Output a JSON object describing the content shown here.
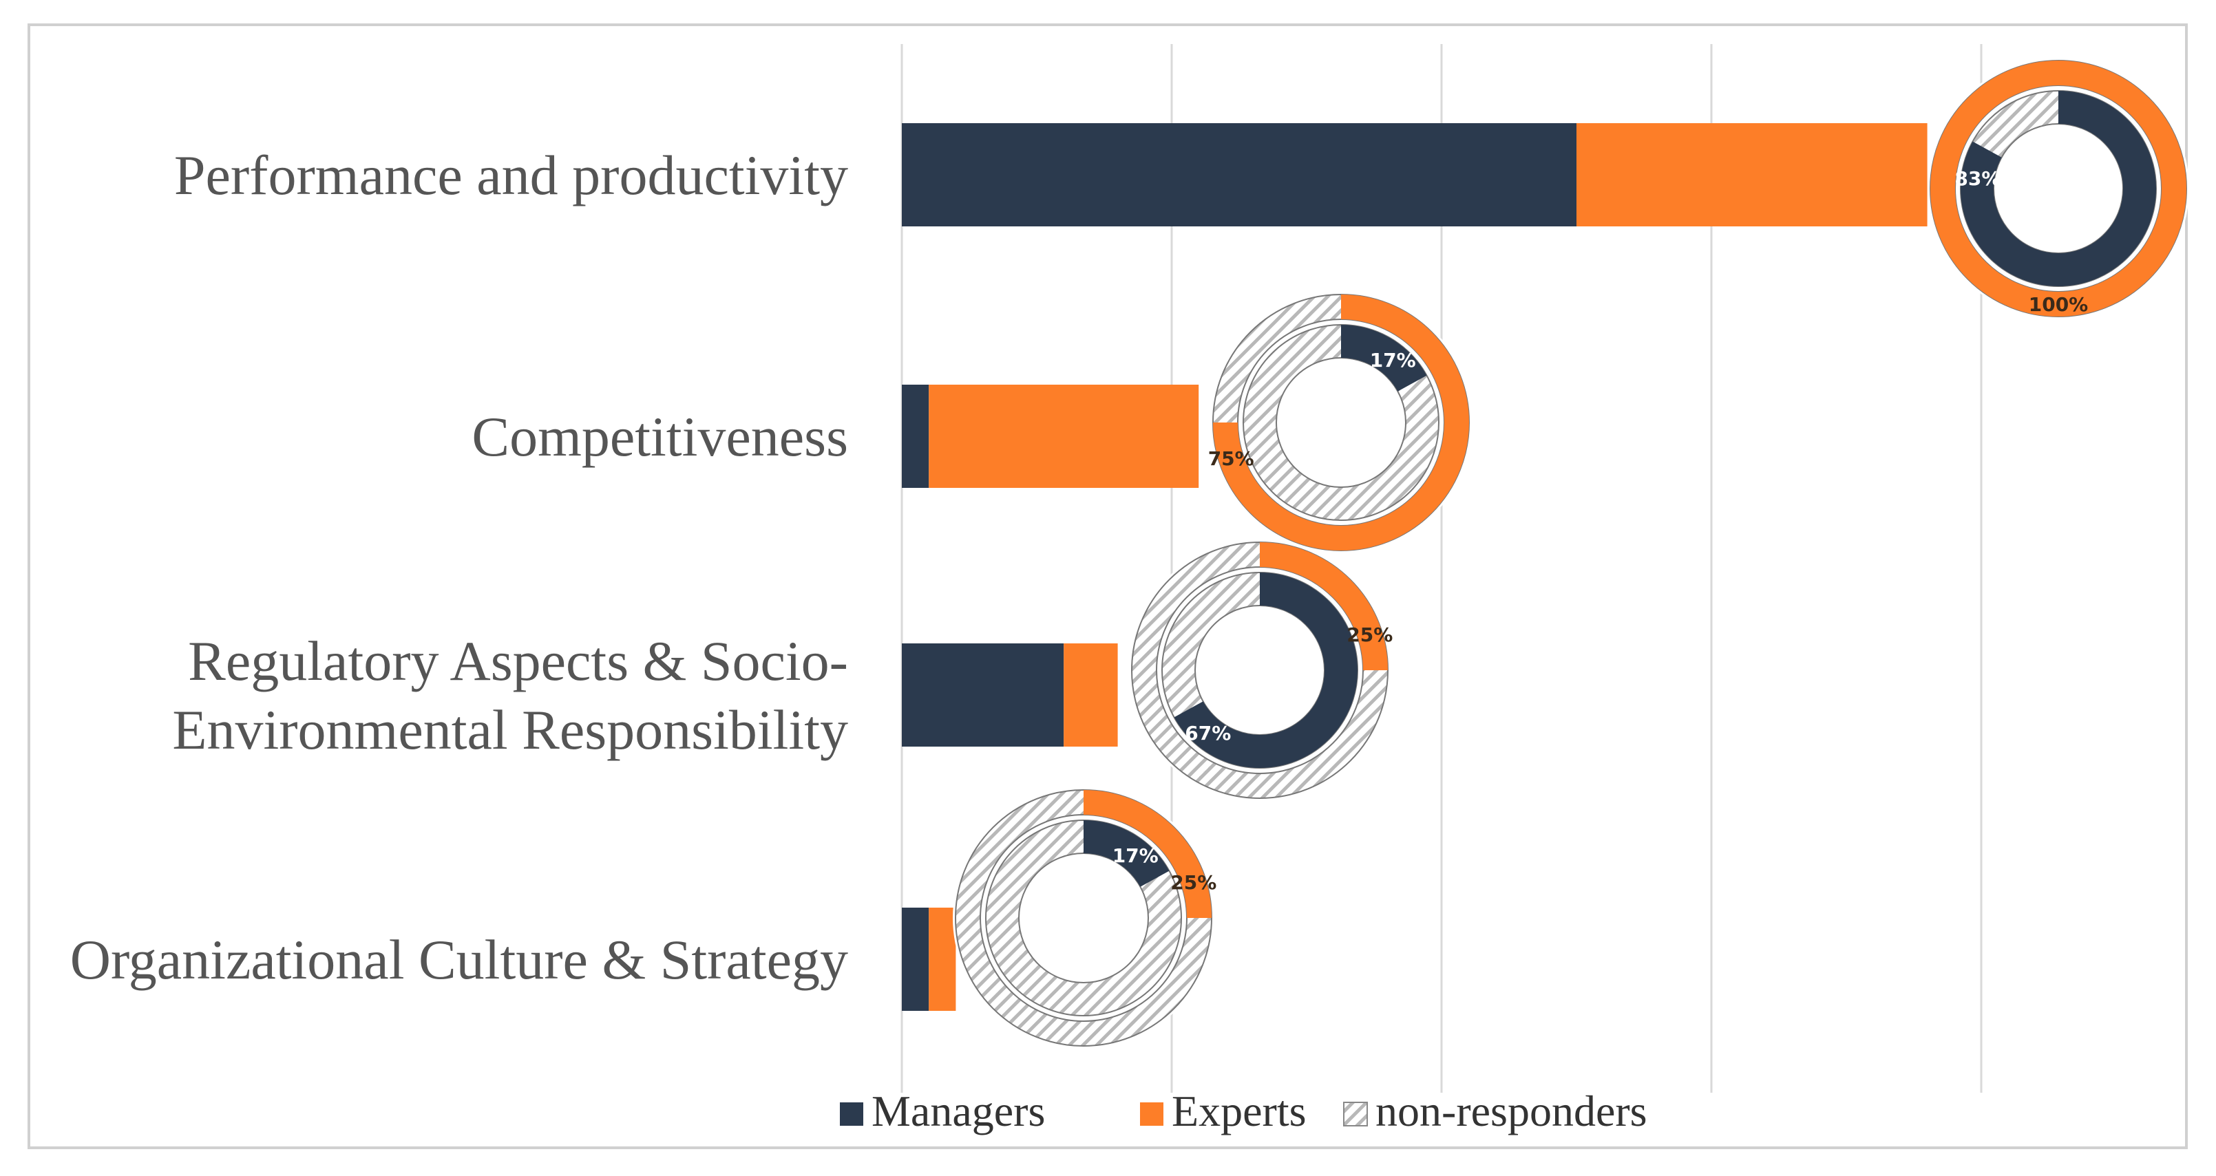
{
  "chart_data": {
    "type": "bar",
    "stacked": true,
    "orientation": "horizontal",
    "categories": [
      "Performance and productivity",
      "Competitiveness",
      [
        "Regulatory Aspects & Socio-",
        "Environmental Responsibility"
      ],
      "Organizational Culture & Strategy"
    ],
    "series": [
      {
        "name": "Managers",
        "color": "#2b3a4e",
        "values": [
          10,
          0.4,
          2.4,
          0.4
        ]
      },
      {
        "name": "Experts",
        "color": "#fd7e28",
        "values": [
          5.2,
          4,
          0.8,
          0.4
        ]
      }
    ],
    "non_responders_label": "non-responders",
    "xlim": [
      0,
      20
    ],
    "grid": true,
    "legend": "bottom",
    "donuts": [
      {
        "category": "Performance and productivity",
        "managers_pct": 83,
        "experts_pct": 100,
        "managers_label": "83%",
        "experts_label": "100%"
      },
      {
        "category": "Competitiveness",
        "managers_pct": 17,
        "experts_pct": 75,
        "managers_label": "17%",
        "experts_label": "75%"
      },
      {
        "category": "Regulatory Aspects & Socio-Environmental Responsibility",
        "managers_pct": 67,
        "experts_pct": 25,
        "managers_label": "67%",
        "experts_label": "25%"
      },
      {
        "category": "Organizational Culture & Strategy",
        "managers_pct": 17,
        "experts_pct": 25,
        "managers_label": "17%",
        "experts_label": "25%"
      }
    ]
  }
}
